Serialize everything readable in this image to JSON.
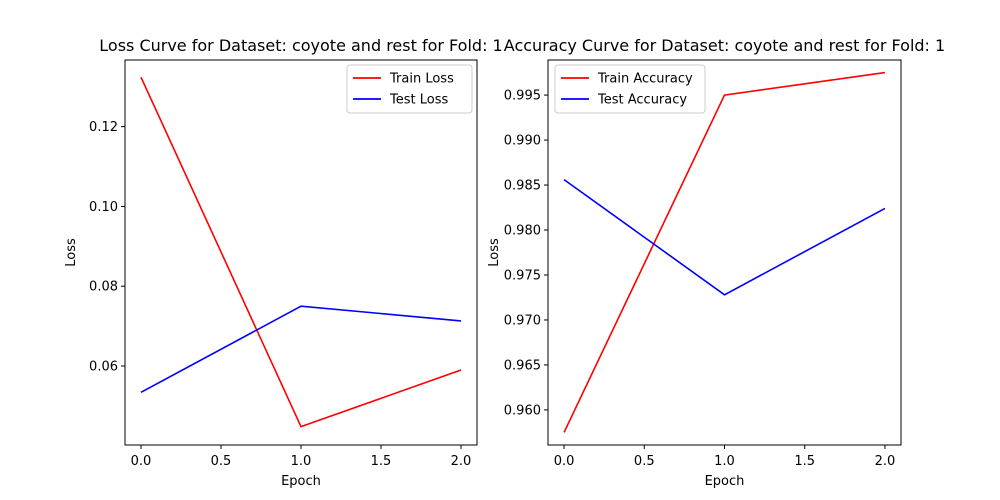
{
  "chart_data": [
    {
      "type": "line",
      "title": "Loss Curve for Dataset: coyote and rest for Fold: 1",
      "xlabel": "Epoch",
      "ylabel": "Loss",
      "x": [
        0,
        1,
        2
      ],
      "xlim": [
        -0.1,
        2.1
      ],
      "ylim": [
        0.0402,
        0.1367
      ],
      "xticks": [
        0.0,
        0.5,
        1.0,
        1.5,
        2.0
      ],
      "xtick_labels": [
        "0.0",
        "0.5",
        "1.0",
        "1.5",
        "2.0"
      ],
      "yticks": [
        0.06,
        0.08,
        0.1,
        0.12
      ],
      "ytick_labels": [
        "0.06",
        "0.08",
        "0.10",
        "0.12"
      ],
      "grid": false,
      "legend_position": "top-right",
      "series": [
        {
          "name": "Train Loss",
          "color": "#ff0000",
          "values": [
            0.1324,
            0.0448,
            0.059
          ]
        },
        {
          "name": "Test Loss",
          "color": "#0000ff",
          "values": [
            0.0534,
            0.075,
            0.0713
          ]
        }
      ]
    },
    {
      "type": "line",
      "title": "Accuracy Curve for Dataset: coyote and rest for Fold: 1",
      "xlabel": "Epoch",
      "ylabel": "Loss",
      "x": [
        0,
        1,
        2
      ],
      "xlim": [
        -0.1,
        2.1
      ],
      "ylim": [
        0.9561,
        0.9989
      ],
      "xticks": [
        0.0,
        0.5,
        1.0,
        1.5,
        2.0
      ],
      "xtick_labels": [
        "0.0",
        "0.5",
        "1.0",
        "1.5",
        "2.0"
      ],
      "yticks": [
        0.96,
        0.965,
        0.97,
        0.975,
        0.98,
        0.985,
        0.99,
        0.995
      ],
      "ytick_labels": [
        "0.960",
        "0.965",
        "0.970",
        "0.975",
        "0.980",
        "0.985",
        "0.990",
        "0.995"
      ],
      "grid": false,
      "legend_position": "top-left",
      "series": [
        {
          "name": "Train Accuracy",
          "color": "#ff0000",
          "values": [
            0.9575,
            0.995,
            0.9975
          ]
        },
        {
          "name": "Test Accuracy",
          "color": "#0000ff",
          "values": [
            0.9856,
            0.9728,
            0.9824
          ]
        }
      ]
    }
  ]
}
